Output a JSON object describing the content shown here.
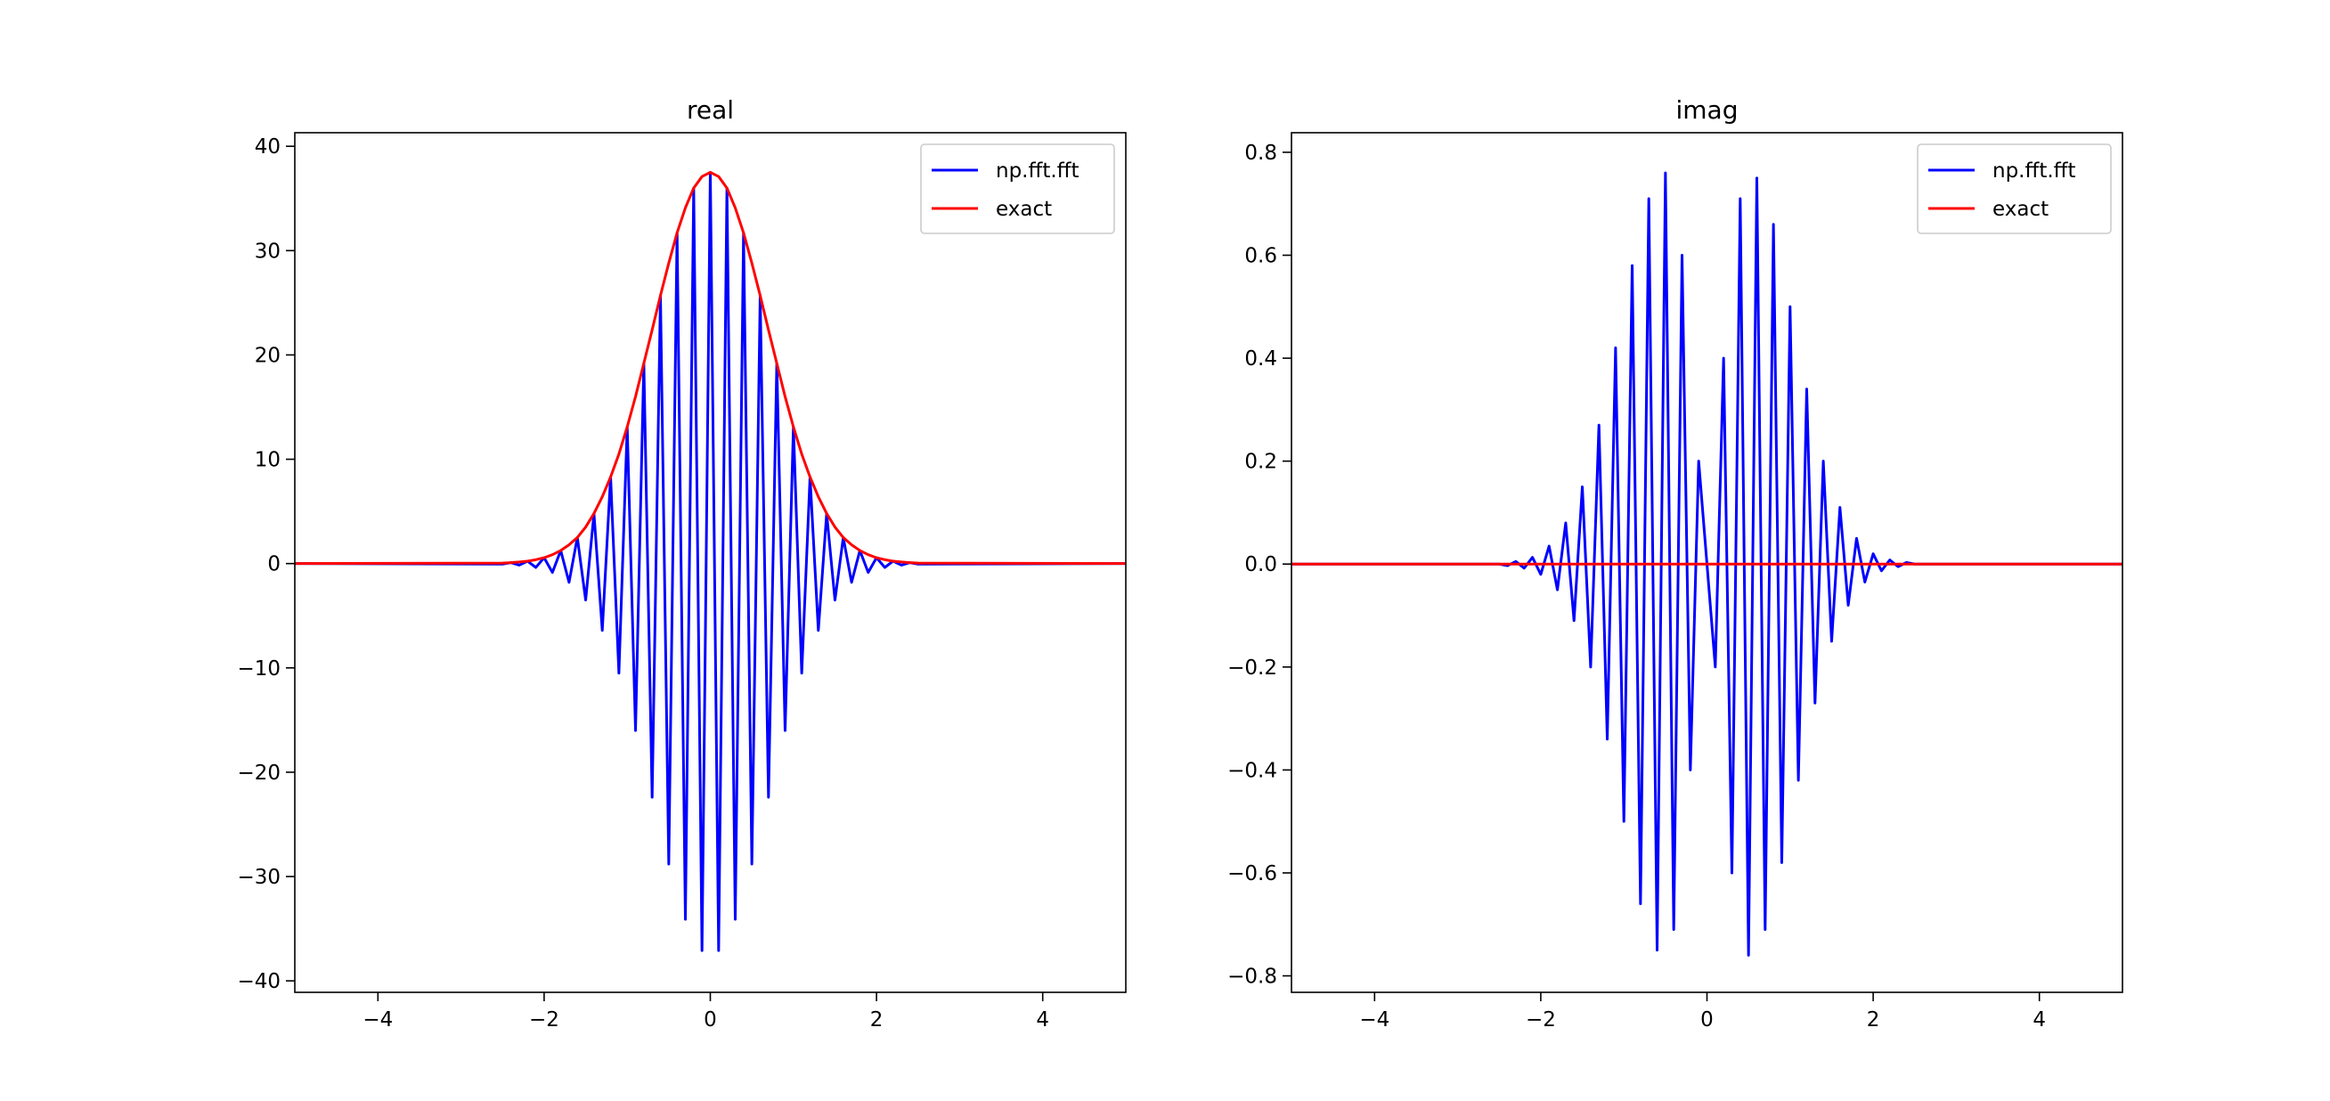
{
  "chart_data": [
    {
      "type": "line",
      "title": "real",
      "x": [
        -5,
        -2.5,
        -2.4,
        -2.3,
        -2.2,
        -2.1,
        -2.0,
        -1.9,
        -1.8,
        -1.7,
        -1.6,
        -1.5,
        -1.4,
        -1.3,
        -1.2,
        -1.1,
        -1.0,
        -0.9,
        -0.8,
        -0.7,
        -0.6,
        -0.5,
        -0.4,
        -0.3,
        -0.2,
        -0.1,
        0,
        0.1,
        0.2,
        0.3,
        0.4,
        0.5,
        0.6,
        0.7,
        0.8,
        0.9,
        1.0,
        1.1,
        1.2,
        1.3,
        1.4,
        1.5,
        1.6,
        1.7,
        1.8,
        1.9,
        2.0,
        2.1,
        2.2,
        2.3,
        2.4,
        2.5,
        5
      ],
      "series": [
        {
          "name": "np.fft.fft",
          "color": "#0000ff",
          "values": [
            0,
            -0.05,
            0.09,
            -0.15,
            0.23,
            -0.37,
            0.56,
            -0.85,
            1.25,
            -1.8,
            2.5,
            -3.5,
            4.8,
            -6.4,
            8.3,
            -10.5,
            13.1,
            -16.0,
            19.2,
            -22.4,
            25.7,
            -28.8,
            31.7,
            -34.1,
            36.0,
            -37.1,
            37.5,
            -37.1,
            36.0,
            -34.1,
            31.7,
            -28.8,
            25.7,
            -22.4,
            19.2,
            -16.0,
            13.1,
            -10.5,
            8.3,
            -6.4,
            4.8,
            -3.5,
            2.5,
            -1.8,
            1.25,
            -0.85,
            0.56,
            -0.37,
            0.23,
            -0.15,
            0.09,
            -0.05,
            0
          ]
        },
        {
          "name": "exact",
          "color": "#ff0000",
          "values": [
            0,
            0.05,
            0.09,
            0.15,
            0.23,
            0.37,
            0.56,
            0.85,
            1.25,
            1.8,
            2.5,
            3.5,
            4.8,
            6.4,
            8.3,
            10.5,
            13.1,
            16.0,
            19.2,
            22.4,
            25.7,
            28.8,
            31.7,
            34.1,
            36.0,
            37.1,
            37.5,
            37.1,
            36.0,
            34.1,
            31.7,
            28.8,
            25.7,
            22.4,
            19.2,
            16.0,
            13.1,
            10.5,
            8.3,
            6.4,
            4.8,
            3.5,
            2.5,
            1.8,
            1.25,
            0.85,
            0.56,
            0.37,
            0.23,
            0.15,
            0.09,
            0.05,
            0
          ]
        }
      ],
      "xlim": [
        -5,
        5
      ],
      "ylim": [
        -41.1,
        41.3
      ],
      "xticks": [
        {
          "value": -4,
          "label": "−4"
        },
        {
          "value": -2,
          "label": "−2"
        },
        0,
        2,
        4
      ],
      "yticks": [
        {
          "value": -40,
          "label": "−40"
        },
        {
          "value": -30,
          "label": "−30"
        },
        {
          "value": -20,
          "label": "−20"
        },
        {
          "value": -10,
          "label": "−10"
        },
        0,
        10,
        20,
        30,
        40
      ],
      "legend": "upper right"
    },
    {
      "type": "line",
      "title": "imag",
      "x": [
        -5,
        -2.5,
        -2.4,
        -2.3,
        -2.2,
        -2.1,
        -2.0,
        -1.9,
        -1.8,
        -1.7,
        -1.6,
        -1.5,
        -1.4,
        -1.3,
        -1.2,
        -1.1,
        -1.0,
        -0.9,
        -0.8,
        -0.7,
        -0.6,
        -0.5,
        -0.4,
        -0.3,
        -0.2,
        -0.1,
        0,
        0.1,
        0.2,
        0.3,
        0.4,
        0.5,
        0.6,
        0.7,
        0.8,
        0.9,
        1.0,
        1.1,
        1.2,
        1.3,
        1.4,
        1.5,
        1.6,
        1.7,
        1.8,
        1.9,
        2.0,
        2.1,
        2.2,
        2.3,
        2.4,
        2.5,
        5
      ],
      "series": [
        {
          "name": "np.fft.fft",
          "color": "#0000ff",
          "values": [
            0,
            0,
            -0.003,
            0.005,
            -0.008,
            0.013,
            -0.02,
            0.035,
            -0.05,
            0.08,
            -0.11,
            0.15,
            -0.2,
            0.27,
            -0.34,
            0.42,
            -0.5,
            0.58,
            -0.66,
            0.71,
            -0.75,
            0.76,
            -0.71,
            0.6,
            -0.4,
            0.2,
            0,
            -0.2,
            0.4,
            -0.6,
            0.71,
            -0.76,
            0.75,
            -0.71,
            0.66,
            -0.58,
            0.5,
            -0.42,
            0.34,
            -0.27,
            0.2,
            -0.15,
            0.11,
            -0.08,
            0.05,
            -0.035,
            0.02,
            -0.013,
            0.008,
            -0.005,
            0.003,
            0,
            0
          ]
        },
        {
          "name": "exact",
          "color": "#ff0000",
          "values": [
            0,
            0,
            0,
            0,
            0,
            0,
            0,
            0,
            0,
            0,
            0,
            0,
            0,
            0,
            0,
            0,
            0,
            0,
            0,
            0,
            0,
            0,
            0,
            0,
            0,
            0,
            0,
            0,
            0,
            0,
            0,
            0,
            0,
            0,
            0,
            0,
            0,
            0,
            0,
            0,
            0,
            0,
            0,
            0,
            0,
            0,
            0,
            0,
            0,
            0,
            0,
            0,
            0
          ]
        }
      ],
      "xlim": [
        -5,
        5
      ],
      "ylim": [
        -0.832,
        0.838
      ],
      "xticks": [
        {
          "value": -4,
          "label": "−4"
        },
        {
          "value": -2,
          "label": "−2"
        },
        0,
        2,
        4
      ],
      "yticks": [
        {
          "value": -0.8,
          "label": "−0.8"
        },
        {
          "value": -0.6,
          "label": "−0.6"
        },
        {
          "value": -0.4,
          "label": "−0.4"
        },
        {
          "value": -0.2,
          "label": "−0.2"
        },
        {
          "value": 0,
          "label": "0.0"
        },
        0.2,
        0.4,
        0.6,
        0.8
      ],
      "legend": "upper right"
    }
  ]
}
